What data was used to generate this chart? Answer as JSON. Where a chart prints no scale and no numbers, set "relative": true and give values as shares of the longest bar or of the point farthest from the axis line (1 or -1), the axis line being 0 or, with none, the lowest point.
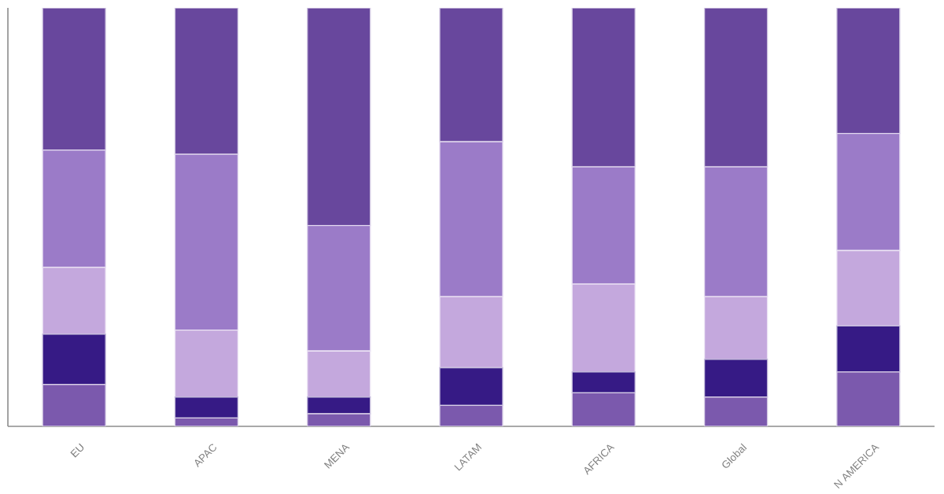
{
  "chart_data": {
    "type": "bar",
    "stacked": true,
    "relative": true,
    "categories": [
      "EU",
      "APAC",
      "MENA",
      "LATAM",
      "AFRICA",
      "Global",
      "N AMERICA"
    ],
    "series": [
      {
        "color": "#7b59ad",
        "values": [
          0.1,
          0.02,
          0.03,
          0.05,
          0.08,
          0.07,
          0.13
        ]
      },
      {
        "color": "#361a85",
        "values": [
          0.12,
          0.05,
          0.04,
          0.09,
          0.05,
          0.09,
          0.11
        ]
      },
      {
        "color": "#c4a8dd",
        "values": [
          0.16,
          0.16,
          0.11,
          0.17,
          0.21,
          0.15,
          0.18
        ]
      },
      {
        "color": "#9b7bc8",
        "values": [
          0.28,
          0.42,
          0.3,
          0.37,
          0.28,
          0.31,
          0.28
        ]
      },
      {
        "color": "#68479d",
        "values": [
          0.34,
          0.35,
          0.52,
          0.32,
          0.38,
          0.38,
          0.3
        ]
      }
    ]
  }
}
